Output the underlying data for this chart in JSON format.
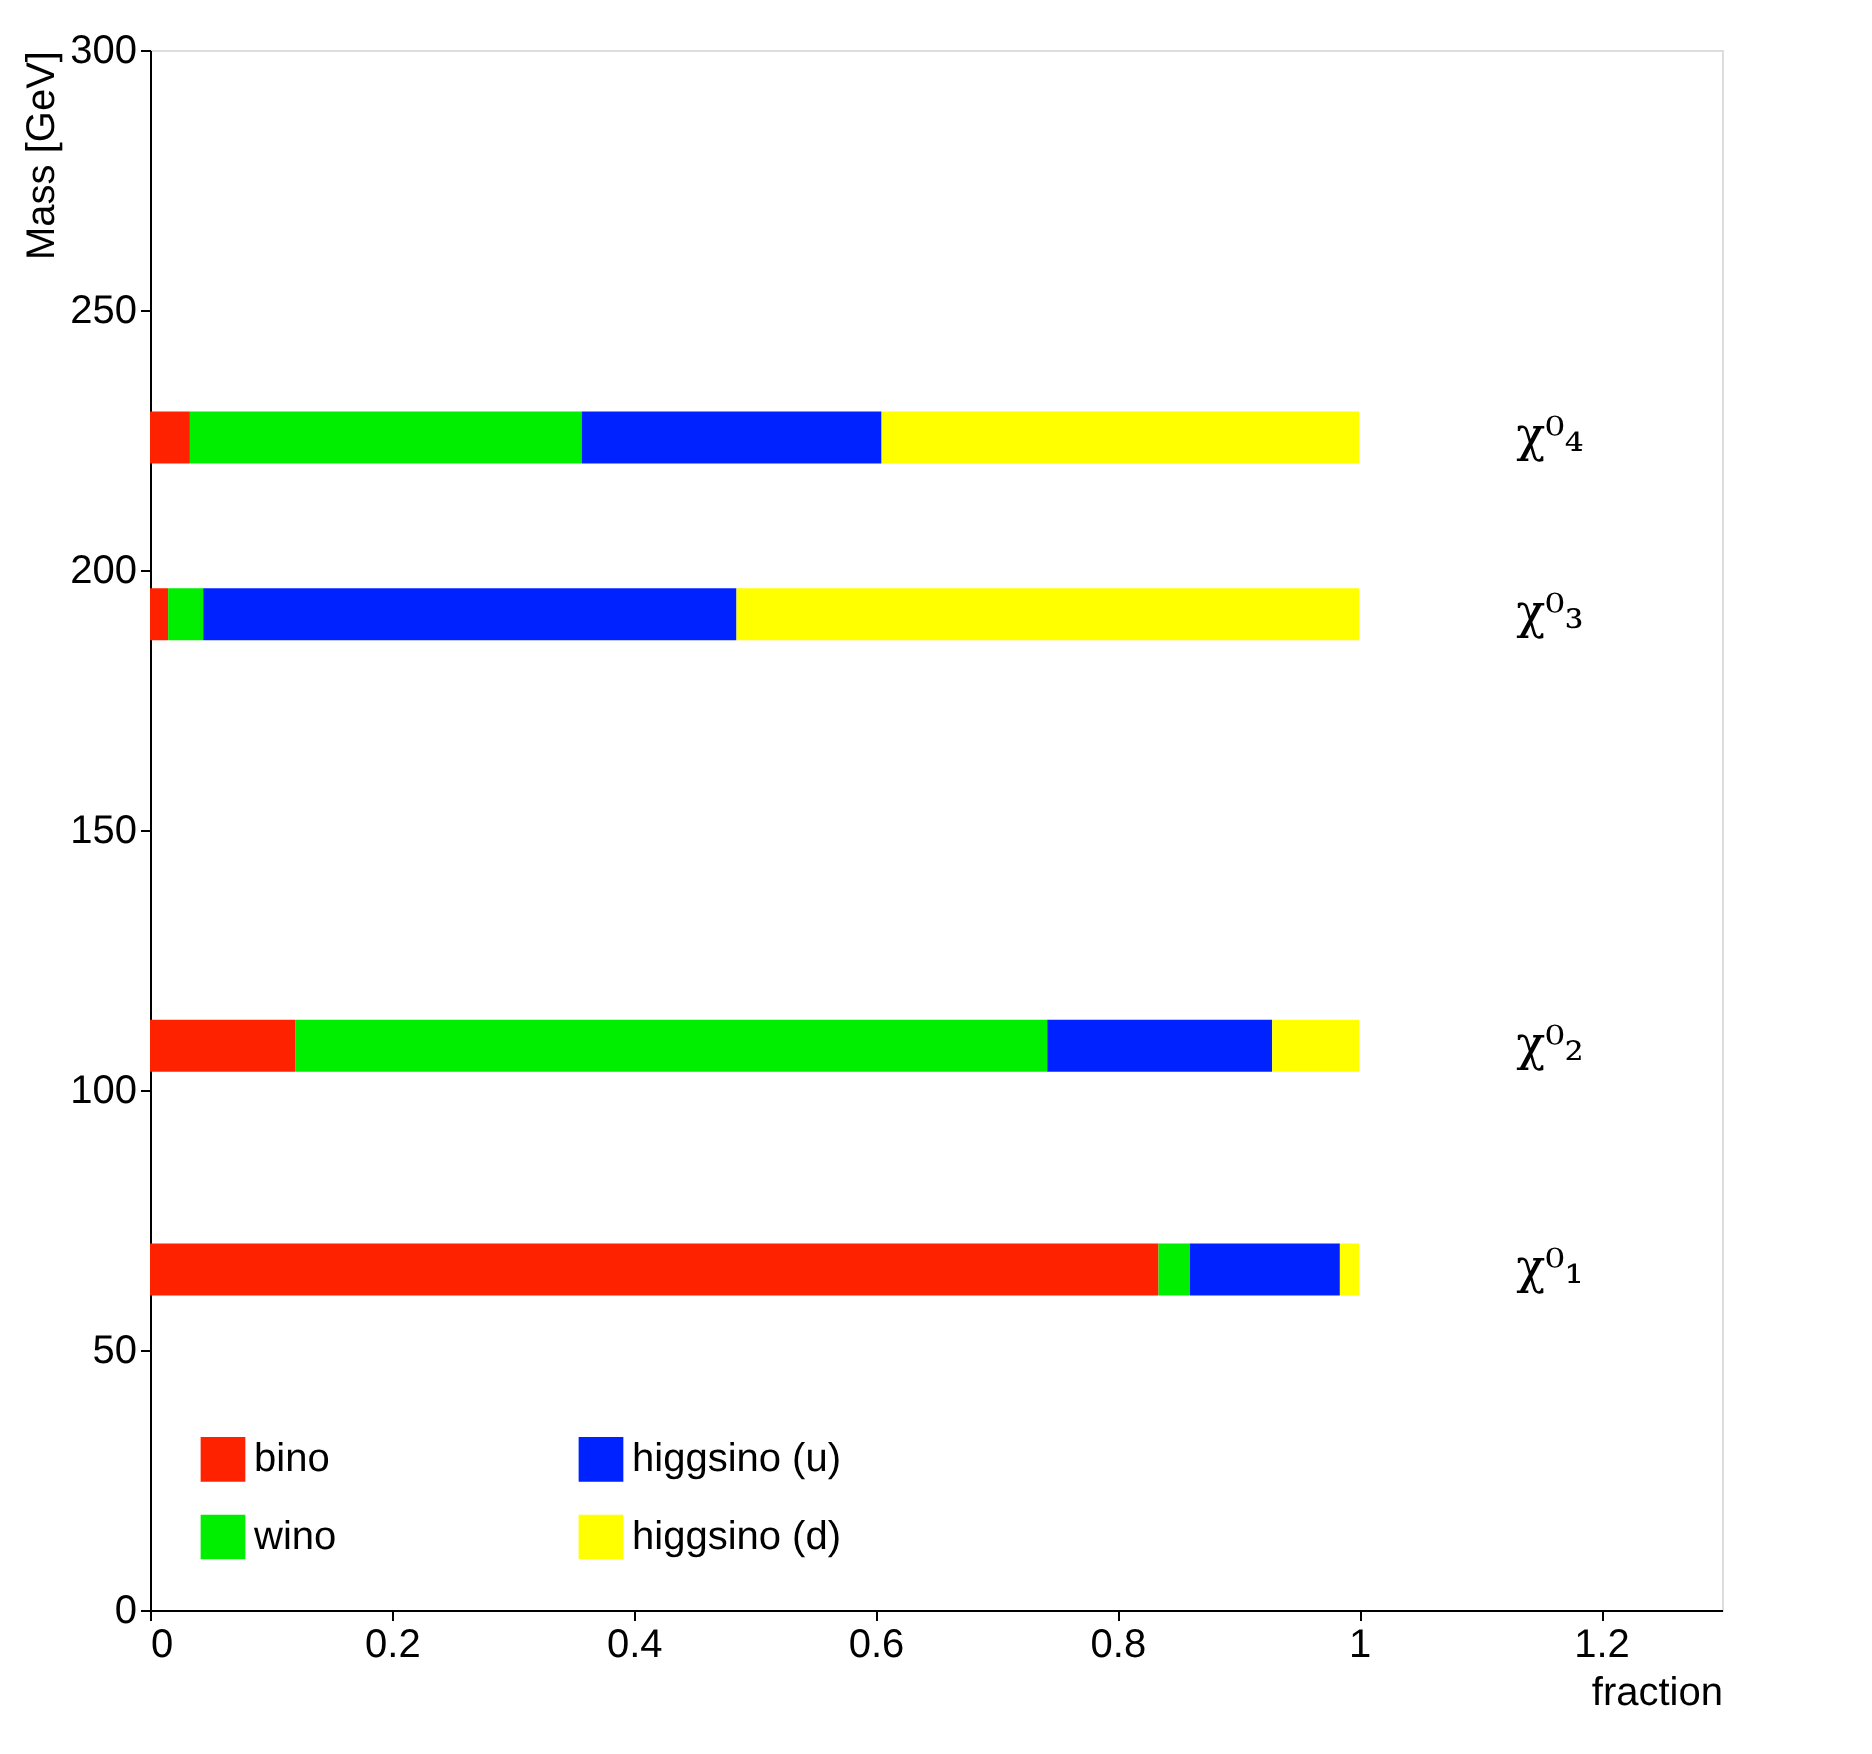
{
  "chart_data": {
    "type": "bar",
    "orientation": "horizontal",
    "stacked": true,
    "xlabel": "fraction",
    "ylabel": "Mass [GeV]",
    "x": [
      65.5,
      108.5,
      191.5,
      225.5
    ],
    "series": [
      {
        "name": "bino",
        "color": "#ff2200",
        "values": [
          0.834,
          0.12,
          0.015,
          0.033
        ]
      },
      {
        "name": "wino",
        "color": "#00ee00",
        "values": [
          0.026,
          0.622,
          0.029,
          0.324
        ]
      },
      {
        "name": "higgsino (u)",
        "color": "#0022ff",
        "values": [
          0.124,
          0.186,
          0.441,
          0.248
        ]
      },
      {
        "name": "higgsino (d)",
        "color": "#ffff00",
        "values": [
          0.016,
          0.072,
          0.515,
          0.395
        ]
      }
    ],
    "annotations": [
      "χ⁰₁",
      "χ⁰₂",
      "χ⁰₃",
      "χ⁰₄"
    ],
    "xlim": [
      0,
      1.3
    ],
    "xticks": [
      0,
      0.2,
      0.4,
      0.6,
      0.8,
      1,
      1.2
    ],
    "ylim": [
      0,
      300
    ],
    "yticks": [
      0,
      50,
      100,
      150,
      200,
      250,
      300
    ],
    "grid": false,
    "legend": "bottom left"
  }
}
